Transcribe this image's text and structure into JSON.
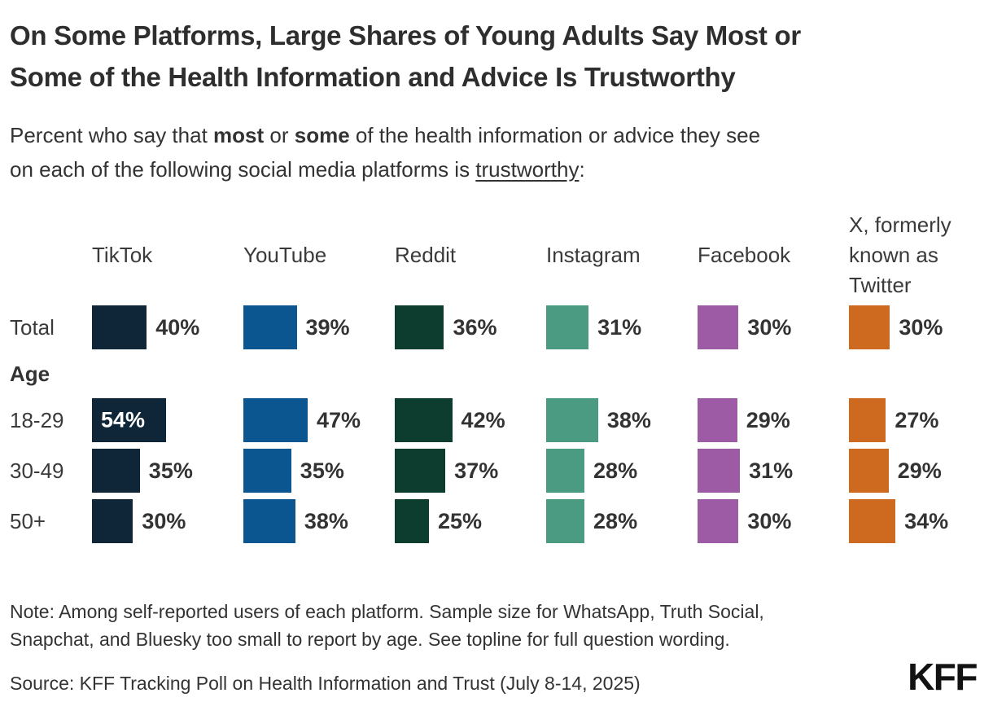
{
  "title": {
    "lines": [
      "On Some Platforms, Large Shares of Young Adults Say Most or",
      "Some of the Health Information and Advice Is Trustworthy"
    ]
  },
  "subtitle": {
    "part1": "Percent who say that ",
    "bold1": "most",
    "part2": " or ",
    "bold2": "some",
    "part3": " of the health information or advice they see\non each of the following social media platforms is ",
    "underlined": "trustworthy",
    "part4": ":"
  },
  "chart_data": {
    "type": "bar",
    "orientation": "horizontal",
    "unit": "%",
    "value_range": [
      0,
      60
    ],
    "grid": false,
    "legend": false,
    "categories": [
      "TikTok",
      "YouTube",
      "Reddit",
      "Instagram",
      "Facebook",
      "X, formerly known as Twitter"
    ],
    "colors": [
      "#0e2638",
      "#0b5591",
      "#0c3d2e",
      "#4a9b82",
      "#9d5aa5",
      "#ce6a1f"
    ],
    "rows": [
      {
        "type": "data",
        "label": "Total",
        "values": [
          40,
          39,
          36,
          31,
          30,
          30
        ]
      },
      {
        "type": "section",
        "label": "Age"
      },
      {
        "type": "data",
        "label": "18-29",
        "values": [
          54,
          47,
          42,
          38,
          29,
          27
        ]
      },
      {
        "type": "data",
        "label": "30-49",
        "values": [
          35,
          35,
          37,
          28,
          31,
          29
        ]
      },
      {
        "type": "data",
        "label": "50+",
        "values": [
          30,
          38,
          25,
          28,
          30,
          34
        ]
      }
    ]
  },
  "footer": {
    "note": "Note: Among self-reported users of each platform. Sample size for WhatsApp, Truth Social,\nSnapchat, and Bluesky too small to report by age. See topline for full question wording.",
    "source": "Source: KFF Tracking Poll on Health Information and Trust (July 8-14, 2025)",
    "logo": "KFF"
  }
}
